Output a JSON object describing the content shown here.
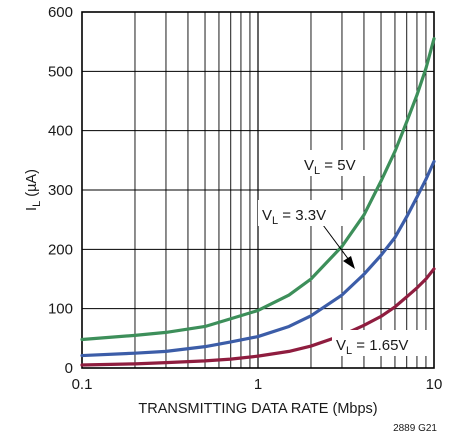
{
  "chart_data": {
    "type": "line",
    "xlabel": "TRANSMITTING DATA RATE  (Mbps)",
    "ylabel": {
      "main": "I",
      "sub": "L",
      "unit": " (µA)"
    },
    "x_scale": "log",
    "xlim": [
      0.1,
      10
    ],
    "ylim": [
      0,
      600
    ],
    "x_ticks": [
      "0.1",
      "1",
      "10"
    ],
    "y_ticks": [
      "0",
      "100",
      "200",
      "300",
      "400",
      "500",
      "600"
    ],
    "grid": true,
    "figure_id": "2889 G21",
    "series": [
      {
        "label": {
          "main": "V",
          "sub": "L",
          "rest": " = 5V"
        },
        "color": "#3d8f5a",
        "x": [
          0.1,
          0.2,
          0.3,
          0.5,
          0.7,
          1,
          1.5,
          2,
          3,
          4,
          5,
          6,
          7,
          8,
          9,
          10
        ],
        "y": [
          48,
          55,
          60,
          70,
          83,
          97,
          123,
          150,
          205,
          258,
          315,
          365,
          415,
          460,
          505,
          555
        ]
      },
      {
        "label": {
          "main": "V",
          "sub": "L",
          "rest": " = 3.3V"
        },
        "color": "#3c5da8",
        "x": [
          0.1,
          0.2,
          0.3,
          0.5,
          0.7,
          1,
          1.5,
          2,
          3,
          4,
          5,
          6,
          7,
          8,
          9,
          10
        ],
        "y": [
          21,
          25,
          28,
          36,
          44,
          53,
          70,
          88,
          123,
          158,
          190,
          220,
          255,
          288,
          318,
          348
        ]
      },
      {
        "label": {
          "main": "V",
          "sub": "L",
          "rest": " = 1.65V"
        },
        "color": "#8f1d3f",
        "x": [
          0.1,
          0.2,
          0.3,
          0.5,
          0.7,
          1,
          1.5,
          2,
          3,
          4,
          5,
          6,
          7,
          8,
          9,
          10
        ],
        "y": [
          5,
          7,
          9,
          12,
          15,
          20,
          28,
          37,
          55,
          72,
          87,
          103,
          120,
          135,
          150,
          167
        ]
      }
    ]
  }
}
